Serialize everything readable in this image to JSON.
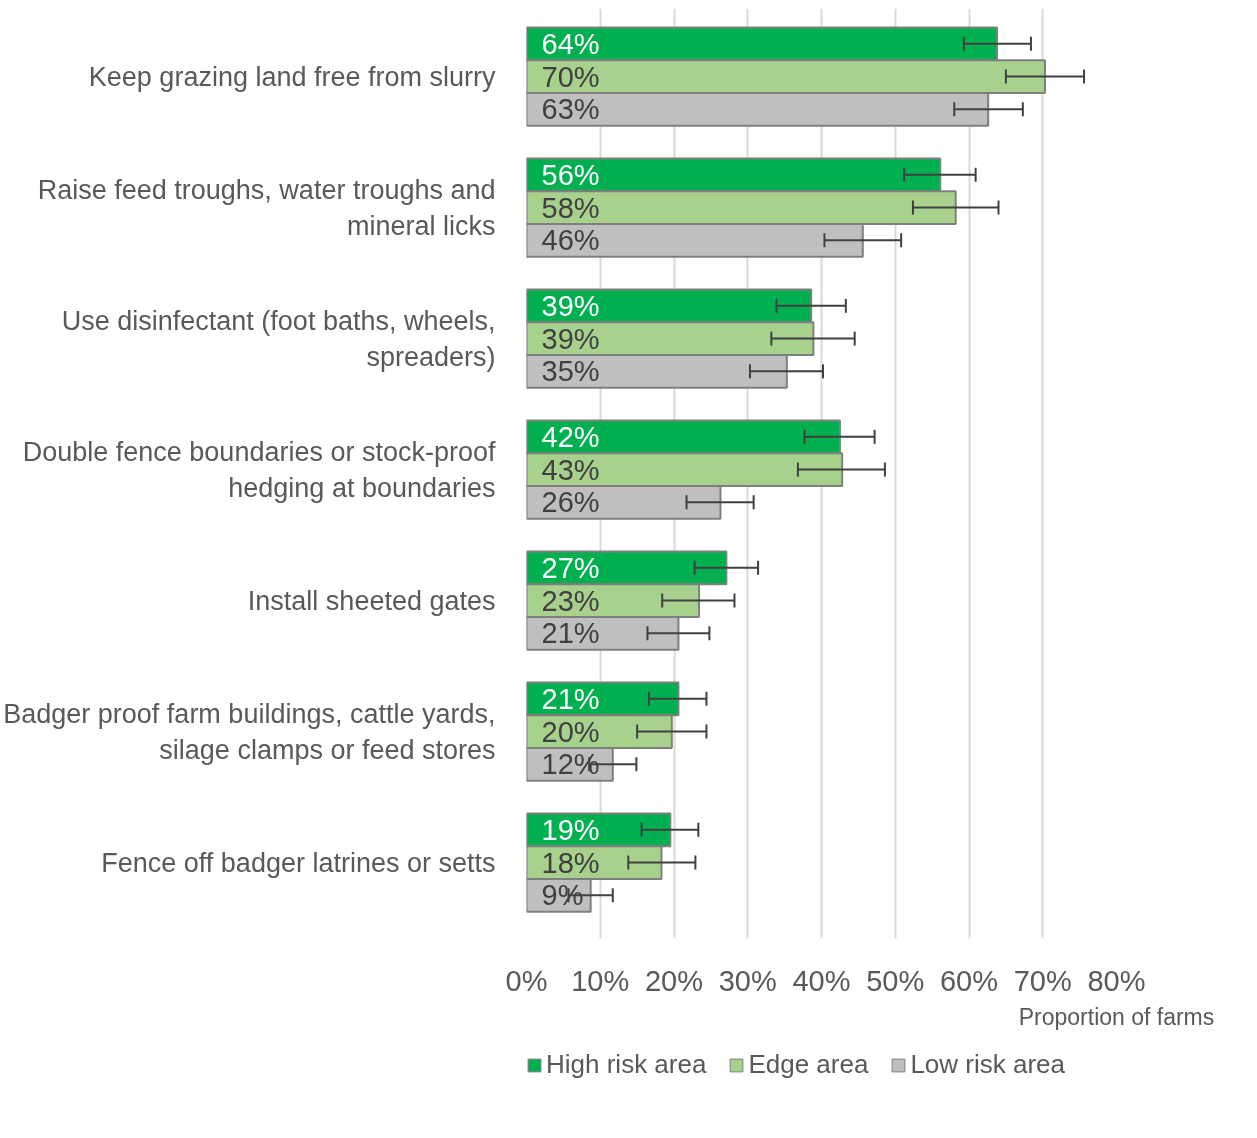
{
  "chart_data": {
    "type": "bar",
    "orientation": "horizontal",
    "xlabel": "Proportion of farms",
    "categories": [
      "Keep grazing land free from slurry",
      "Raise feed troughs, water troughs and mineral licks",
      "Use disinfectant (foot baths, wheels, spreaders)",
      "Double fence boundaries or stock-proof hedging at boundaries",
      "Install sheeted gates",
      "Badger proof farm buildings, cattle yards, silage clamps or feed stores",
      "Fence off badger latrines or setts"
    ],
    "series": [
      {
        "name": "High risk area",
        "color": "#00b050",
        "values": [
          63.8,
          56.1,
          38.6,
          42.5,
          27.1,
          20.6,
          19.5
        ],
        "value_labels": [
          "64%",
          "56%",
          "39%",
          "42%",
          "27%",
          "21%",
          "19%"
        ],
        "errors": [
          [
            59.3,
            68.4
          ],
          [
            51.2,
            60.9
          ],
          [
            33.9,
            43.3
          ],
          [
            37.7,
            47.2
          ],
          [
            22.8,
            31.4
          ],
          [
            16.6,
            24.4
          ],
          [
            15.6,
            23.3
          ]
        ]
      },
      {
        "name": "Edge area",
        "color": "#a9d18e",
        "values": [
          70.3,
          58.2,
          38.9,
          42.8,
          23.4,
          19.7,
          18.3
        ],
        "value_labels": [
          "70%",
          "58%",
          "39%",
          "43%",
          "23%",
          "20%",
          "18%"
        ],
        "errors": [
          [
            65.0,
            75.6
          ],
          [
            52.4,
            64.0
          ],
          [
            33.2,
            44.5
          ],
          [
            36.8,
            48.6
          ],
          [
            18.4,
            28.2
          ],
          [
            15.0,
            24.4
          ],
          [
            13.8,
            22.9
          ]
        ]
      },
      {
        "name": "Low risk area",
        "color": "#bfbfbf",
        "values": [
          62.6,
          45.6,
          35.3,
          26.3,
          20.6,
          11.7,
          8.7
        ],
        "value_labels": [
          "63%",
          "46%",
          "35%",
          "26%",
          "21%",
          "12%",
          "9%"
        ],
        "errors": [
          [
            58.0,
            67.3
          ],
          [
            40.4,
            50.8
          ],
          [
            30.3,
            40.2
          ],
          [
            21.7,
            30.8
          ],
          [
            16.4,
            24.8
          ],
          [
            8.5,
            14.9
          ],
          [
            5.7,
            11.7
          ]
        ]
      }
    ],
    "xlim": [
      0,
      80
    ],
    "xticks": [
      {
        "value": 0,
        "label": "0%"
      },
      {
        "value": 10,
        "label": "10%"
      },
      {
        "value": 20,
        "label": "20%"
      },
      {
        "value": 30,
        "label": "30%"
      },
      {
        "value": 40,
        "label": "40%"
      },
      {
        "value": 50,
        "label": "50%"
      },
      {
        "value": 60,
        "label": "60%"
      },
      {
        "value": 70,
        "label": "70%"
      },
      {
        "value": 80,
        "label": "80%"
      }
    ],
    "grid": "x",
    "legend": "bottom"
  }
}
